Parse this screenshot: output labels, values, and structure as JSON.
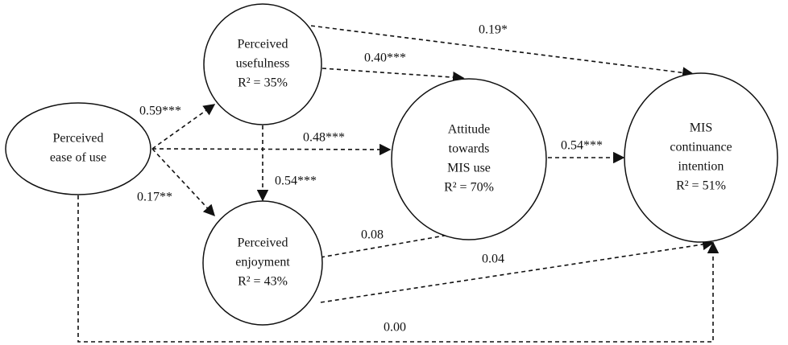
{
  "nodes": [
    {
      "lines": [
        "Perceived",
        "ease of use"
      ]
    },
    {
      "lines": [
        "Perceived",
        "usefulness",
        "R² = 35%"
      ]
    },
    {
      "lines": [
        "Perceived",
        "enjoyment",
        "R² = 43%"
      ]
    },
    {
      "lines": [
        "Attitude",
        "towards",
        "MIS use",
        "R² = 70%"
      ]
    },
    {
      "lines": [
        "MIS",
        "continuance",
        "intention",
        "R² = 51%"
      ]
    }
  ],
  "edges": [
    {
      "label": "0.19*"
    },
    {
      "label": "0.40***"
    },
    {
      "label": "0.59***"
    },
    {
      "label": "0.48***"
    },
    {
      "label": "0.17**"
    },
    {
      "label": "0.54***"
    },
    {
      "label": "0.54***"
    },
    {
      "label": "0.08"
    },
    {
      "label": "0.04"
    },
    {
      "label": "0.00"
    }
  ]
}
